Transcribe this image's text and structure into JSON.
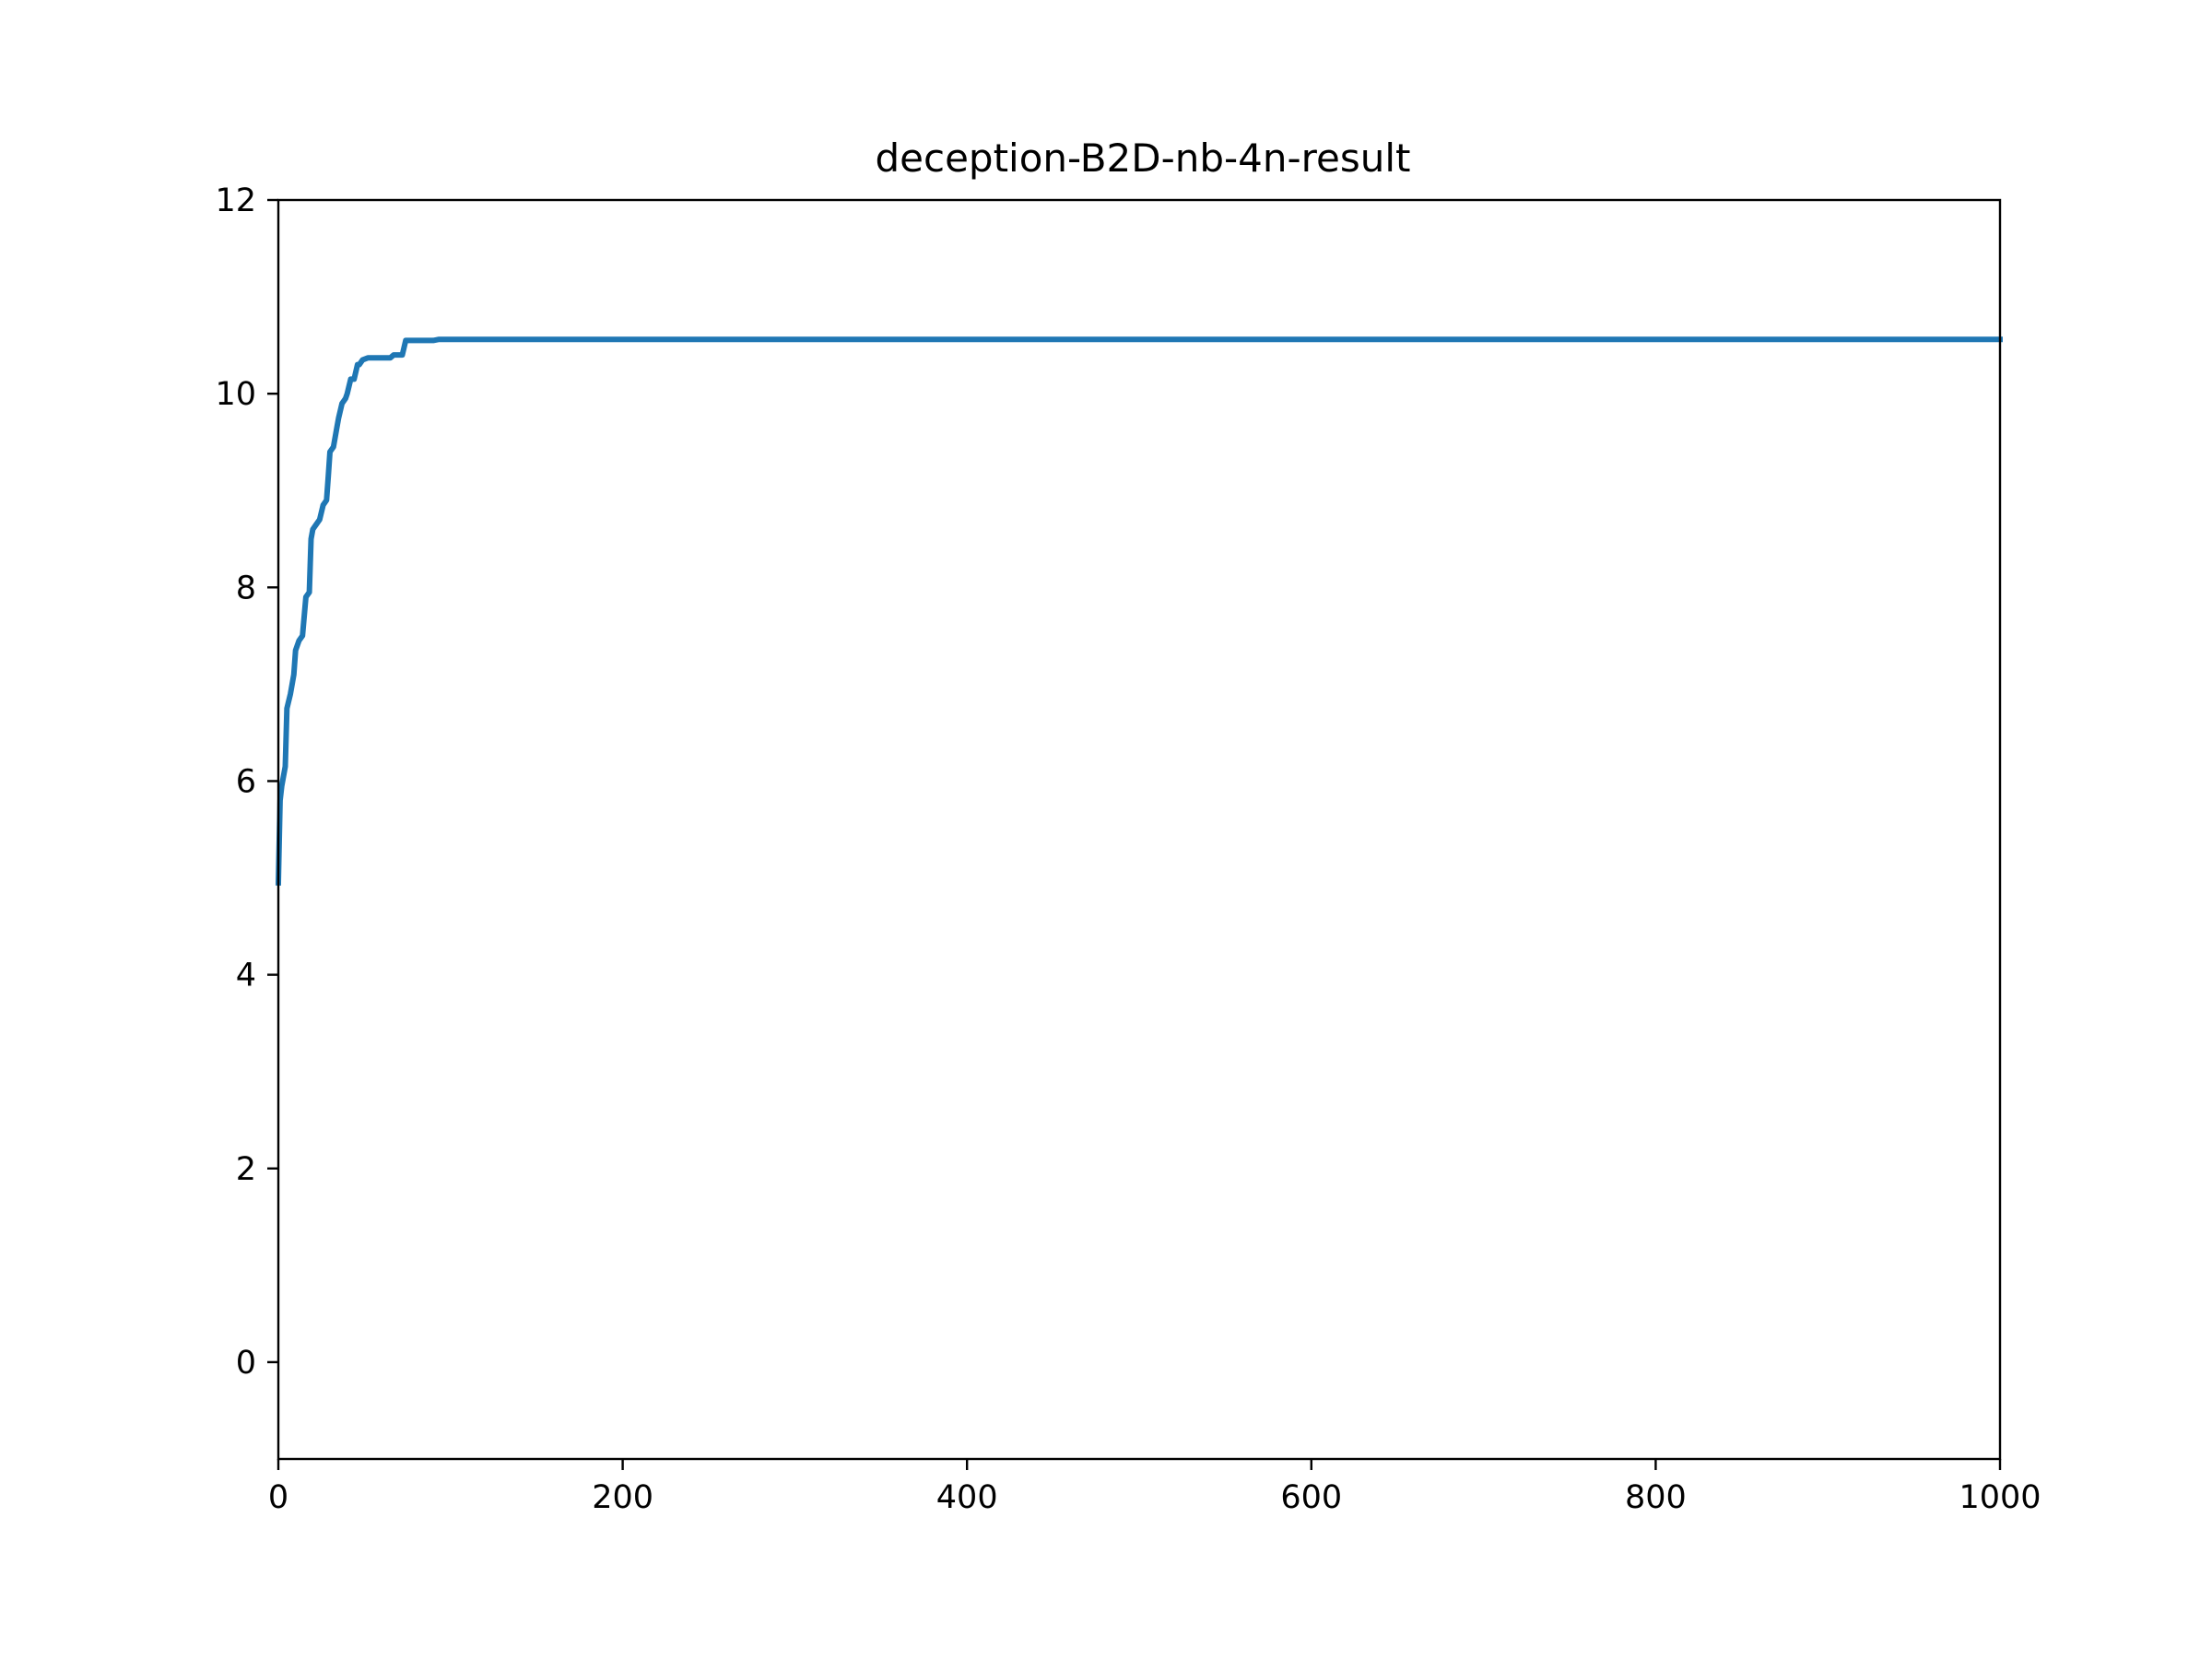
{
  "chart_data": {
    "type": "line",
    "title": "deception-B2D-nb-4n-result",
    "xlabel": "",
    "ylabel": "",
    "xlim": [
      0,
      1000
    ],
    "ylim": [
      -1,
      12
    ],
    "grid": false,
    "legend": "none",
    "x_ticks": [
      0,
      200,
      400,
      600,
      800,
      1000
    ],
    "y_ticks": [
      0,
      2,
      4,
      6,
      8,
      10,
      12
    ],
    "series": [
      {
        "color": "#1f77b4",
        "x": [
          0,
          1,
          2,
          4,
          5,
          7,
          9,
          10,
          12,
          14,
          16,
          18,
          19,
          20,
          22,
          24,
          26,
          28,
          29,
          30,
          32,
          34,
          35,
          37,
          39,
          40,
          42,
          44,
          46,
          47,
          49,
          52,
          54,
          58,
          60,
          65,
          67,
          72,
          74,
          80,
          90,
          93,
          1000
        ],
        "y": [
          4.95,
          5.8,
          5.95,
          6.15,
          6.75,
          6.9,
          7.1,
          7.35,
          7.45,
          7.5,
          7.9,
          7.95,
          8.5,
          8.6,
          8.65,
          8.7,
          8.85,
          8.9,
          9.15,
          9.4,
          9.45,
          9.65,
          9.75,
          9.9,
          9.95,
          10.0,
          10.15,
          10.15,
          10.3,
          10.3,
          10.35,
          10.37,
          10.37,
          10.37,
          10.37,
          10.37,
          10.4,
          10.4,
          10.55,
          10.55,
          10.55,
          10.56,
          10.56
        ]
      }
    ]
  }
}
